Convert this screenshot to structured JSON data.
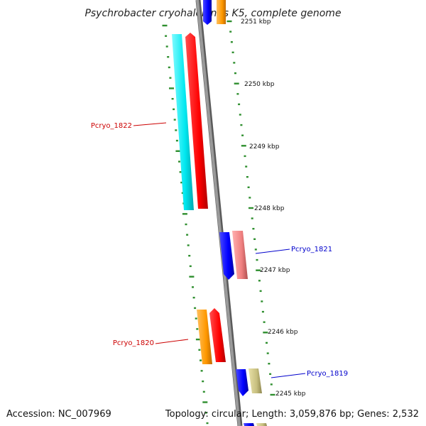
{
  "title": "Psychrobacter cryohalolentis K5, complete genome",
  "footer": {
    "accession": "Accession: NC_007969",
    "summary": "Topology: circular; Length: 3,059,876 bp; Genes: 2,532"
  },
  "ruler": {
    "unit": "kbp",
    "labels": [
      "2251 kbp",
      "2250 kbp",
      "2249 kbp",
      "2248 kbp",
      "2247 kbp",
      "2246 kbp",
      "2245 kbp"
    ]
  },
  "gene_labels": [
    {
      "text": "Pcryo_1822",
      "strand": "reverse",
      "color": "#cc0000"
    },
    {
      "text": "Pcryo_1821",
      "strand": "forward",
      "color": "#0000cc"
    },
    {
      "text": "Pcryo_1820",
      "strand": "reverse",
      "color": "#cc0000"
    },
    {
      "text": "Pcryo_1819",
      "strand": "forward",
      "color": "#0000cc"
    }
  ],
  "colors": {
    "backbone": "#8a8a8a",
    "ticks": "#2f8f2f",
    "cyan": "#00e5ee",
    "red": "#ff0000",
    "blue": "#0000ff",
    "pink": "#f08080",
    "orange": "#ff9900",
    "khaki": "#c8c080"
  }
}
